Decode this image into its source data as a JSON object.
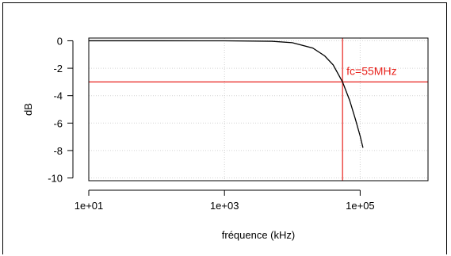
{
  "chart_data": {
    "type": "line",
    "xlabel": "fréquence (kHz)",
    "ylabel": "dB",
    "x_scale": "log10",
    "xlim": [
      10,
      1000000
    ],
    "ylim": [
      -10.2,
      0.2
    ],
    "x_ticks": [
      10,
      1000,
      100000
    ],
    "x_tick_labels": [
      "1e+01",
      "1e+03",
      "1e+05"
    ],
    "y_ticks": [
      0,
      -2,
      -4,
      -6,
      -8,
      -10
    ],
    "y_tick_labels": [
      "0",
      "-2",
      "-4",
      "-6",
      "-8",
      "-10"
    ],
    "grid": true,
    "series": [
      {
        "color": "#000000",
        "x": [
          10,
          100,
          1000,
          5000,
          10000,
          20000,
          30000,
          40000,
          55000,
          70000,
          85000,
          100000,
          110000
        ],
        "y": [
          0,
          0,
          -0.001,
          -0.036,
          -0.14,
          -0.53,
          -1.1,
          -1.76,
          -3.0,
          -4.34,
          -5.71,
          -6.95,
          -7.8
        ]
      }
    ],
    "cutoff": {
      "x": 55000,
      "y": -3,
      "color": "#e8211b",
      "label": "fc=55MHz"
    }
  }
}
